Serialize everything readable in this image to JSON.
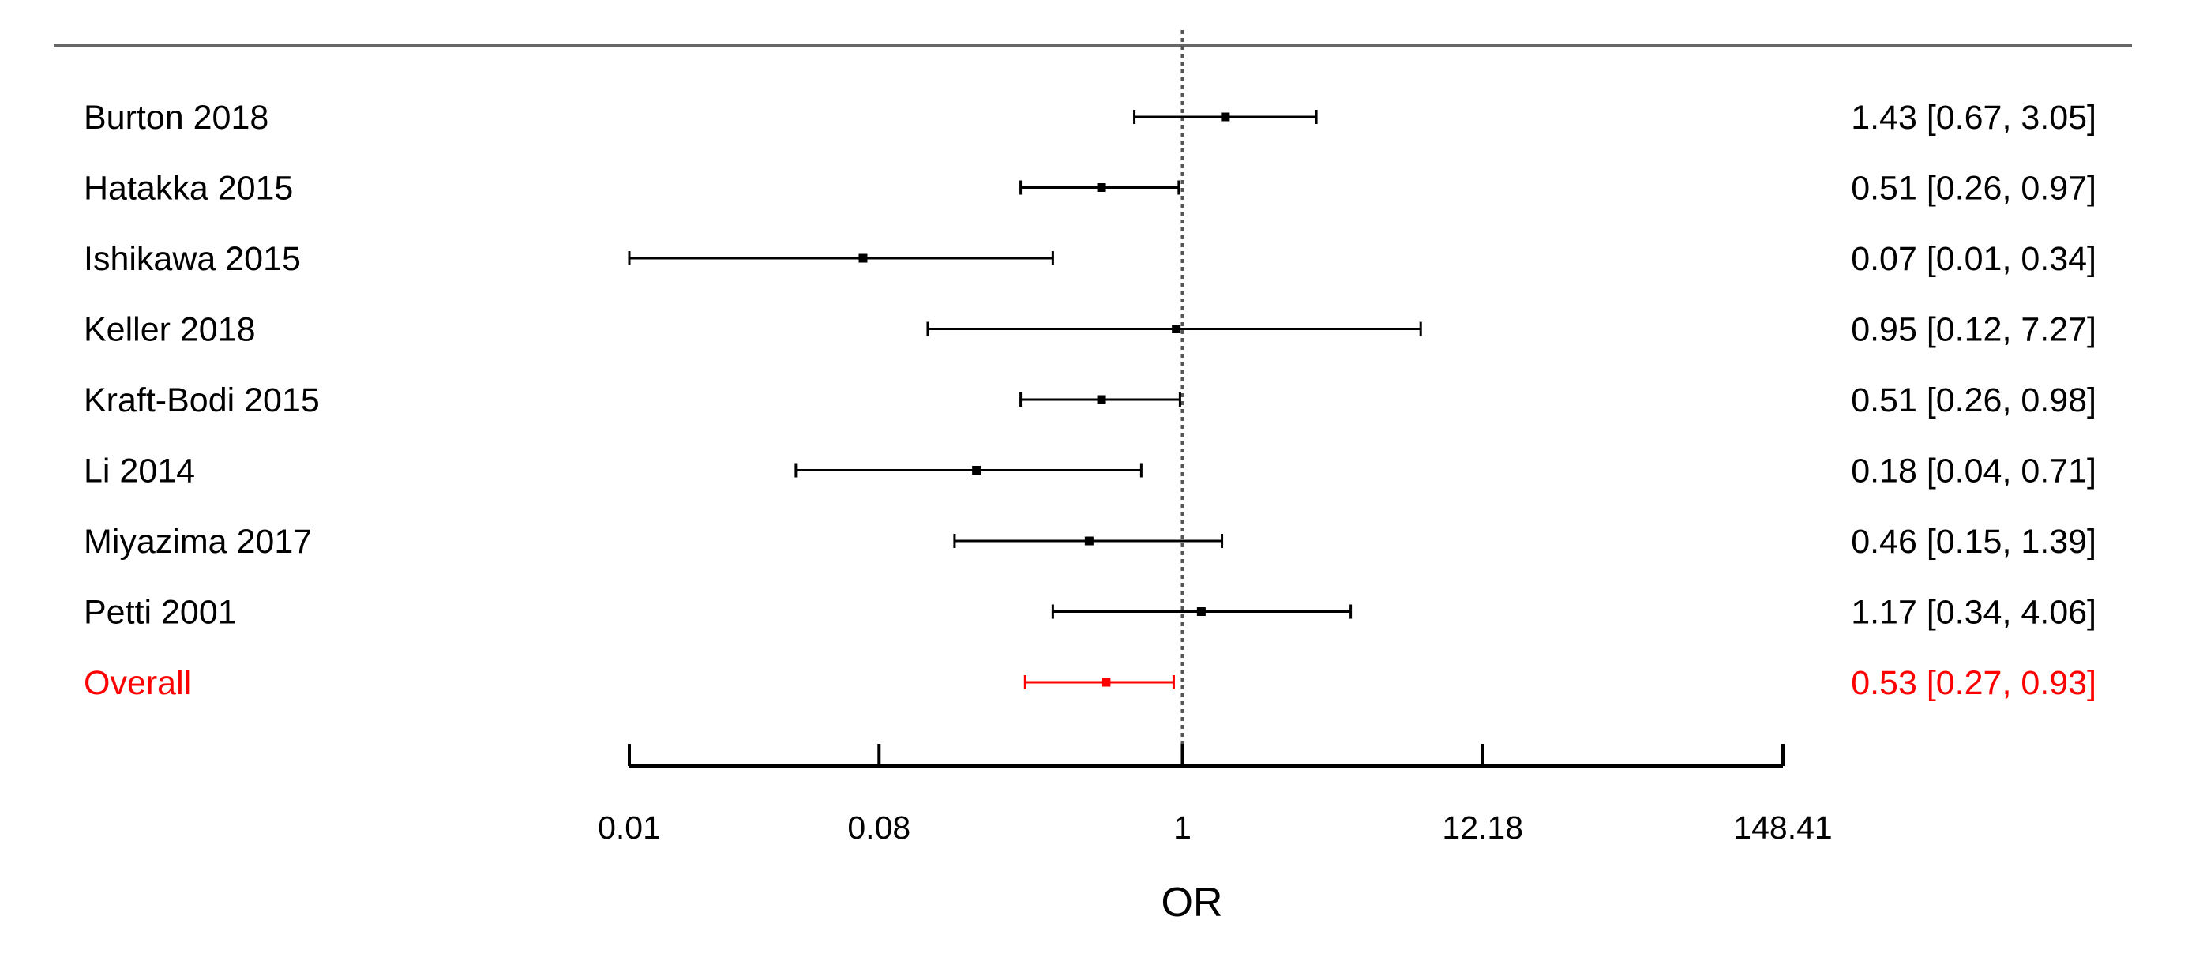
{
  "chart_data": {
    "type": "forest",
    "xlabel": "OR",
    "x_scale": "log",
    "xlim": [
      0.01,
      148.41
    ],
    "x_ticks": [
      {
        "value": 0.01,
        "label": "0.01"
      },
      {
        "value": 0.08,
        "label": "0.08"
      },
      {
        "value": 1,
        "label": "1"
      },
      {
        "value": 12.18,
        "label": "12.18"
      },
      {
        "value": 148.41,
        "label": "148.41"
      }
    ],
    "reference_line": 1,
    "studies": [
      {
        "label": "Burton 2018",
        "or": 1.43,
        "lower": 0.67,
        "upper": 3.05,
        "ci_text": "1.43 [0.67, 3.05]"
      },
      {
        "label": "Hatakka 2015",
        "or": 0.51,
        "lower": 0.26,
        "upper": 0.97,
        "ci_text": "0.51 [0.26, 0.97]"
      },
      {
        "label": "Ishikawa 2015",
        "or": 0.07,
        "lower": 0.01,
        "upper": 0.34,
        "ci_text": "0.07 [0.01, 0.34]"
      },
      {
        "label": "Keller 2018",
        "or": 0.95,
        "lower": 0.12,
        "upper": 7.27,
        "ci_text": "0.95 [0.12, 7.27]"
      },
      {
        "label": "Kraft-Bodi 2015",
        "or": 0.51,
        "lower": 0.26,
        "upper": 0.98,
        "ci_text": "0.51 [0.26, 0.98]"
      },
      {
        "label": "Li 2014",
        "or": 0.18,
        "lower": 0.04,
        "upper": 0.71,
        "ci_text": "0.18 [0.04, 0.71]"
      },
      {
        "label": "Miyazima 2017",
        "or": 0.46,
        "lower": 0.15,
        "upper": 1.39,
        "ci_text": "0.46 [0.15, 1.39]"
      },
      {
        "label": "Petti 2001",
        "or": 1.17,
        "lower": 0.34,
        "upper": 4.06,
        "ci_text": "1.17 [0.34, 4.06]"
      }
    ],
    "overall": {
      "label": "Overall",
      "or": 0.53,
      "lower": 0.27,
      "upper": 0.93,
      "ci_text": "0.53 [0.27, 0.93]"
    },
    "colors": {
      "studies": "#000000",
      "overall": "#ff0000",
      "reference_line": "#555555",
      "top_rule": "#666666"
    }
  }
}
